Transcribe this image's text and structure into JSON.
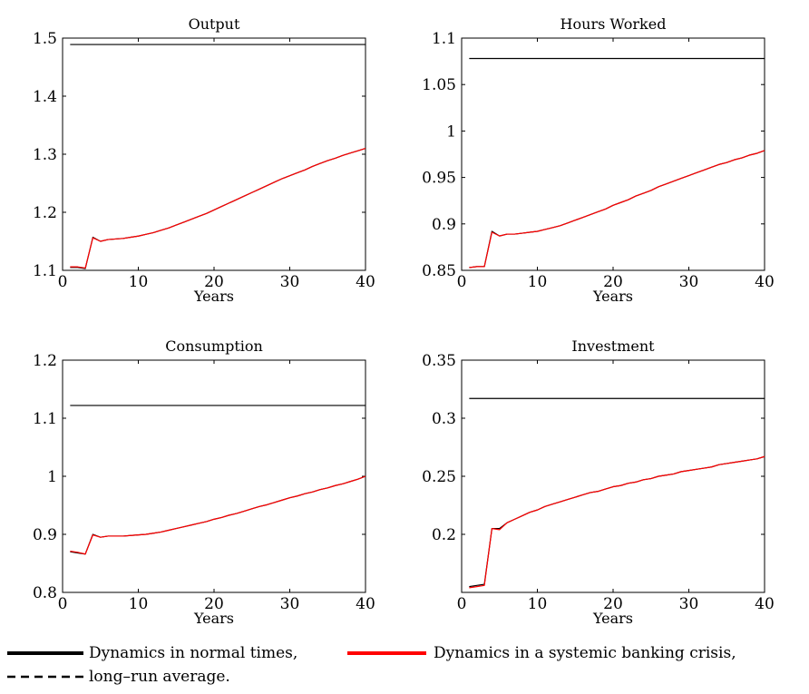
{
  "chart_data": [
    {
      "type": "line",
      "title": "Output",
      "xlabel": "Years",
      "ylabel": "",
      "xlim": [
        0,
        40
      ],
      "ylim": [
        1.1,
        1.5
      ],
      "xticks": [
        0,
        10,
        20,
        30,
        40
      ],
      "yticks": [
        1.1,
        1.2,
        1.3,
        1.4,
        1.5
      ],
      "ytick_labels": [
        "1.1",
        "1.2",
        "1.3",
        "1.4",
        "1.5"
      ],
      "grid": false,
      "x": [
        1,
        2,
        3,
        4,
        5,
        6,
        7,
        8,
        9,
        10,
        11,
        12,
        13,
        14,
        15,
        16,
        17,
        18,
        19,
        20,
        21,
        22,
        23,
        24,
        25,
        26,
        27,
        28,
        29,
        30,
        31,
        32,
        33,
        34,
        35,
        36,
        37,
        38,
        39,
        40
      ],
      "series": [
        {
          "name": "Dynamics in normal times,",
          "color": "#000000",
          "style": "solid",
          "values": [
            1.105,
            1.105,
            1.103,
            1.157,
            1.15,
            1.153,
            1.154,
            1.155,
            1.157,
            1.159,
            1.162,
            1.165,
            1.169,
            1.173,
            1.178,
            1.183,
            1.188,
            1.193,
            1.198,
            1.204,
            1.21,
            1.216,
            1.222,
            1.228,
            1.234,
            1.24,
            1.246,
            1.252,
            1.258,
            1.263,
            1.268,
            1.273,
            1.279,
            1.284,
            1.289,
            1.293,
            1.298,
            1.302,
            1.306,
            1.31
          ]
        },
        {
          "name": "Dynamics in a systemic banking crisis,",
          "color": "#ff0000",
          "style": "solid",
          "values": [
            1.106,
            1.106,
            1.104,
            1.156,
            1.15,
            1.153,
            1.154,
            1.155,
            1.157,
            1.159,
            1.162,
            1.165,
            1.169,
            1.173,
            1.178,
            1.183,
            1.188,
            1.193,
            1.198,
            1.204,
            1.21,
            1.216,
            1.222,
            1.228,
            1.234,
            1.24,
            1.246,
            1.252,
            1.258,
            1.263,
            1.268,
            1.273,
            1.279,
            1.284,
            1.289,
            1.293,
            1.298,
            1.302,
            1.306,
            1.31
          ]
        },
        {
          "name": "long–run average.",
          "color": "#000000",
          "style": "solid",
          "values": [
            1.489,
            1.489,
            1.489,
            1.489,
            1.489,
            1.489,
            1.489,
            1.489,
            1.489,
            1.489,
            1.489,
            1.489,
            1.489,
            1.489,
            1.489,
            1.489,
            1.489,
            1.489,
            1.489,
            1.489,
            1.489,
            1.489,
            1.489,
            1.489,
            1.489,
            1.489,
            1.489,
            1.489,
            1.489,
            1.489,
            1.489,
            1.489,
            1.489,
            1.489,
            1.489,
            1.489,
            1.489,
            1.489,
            1.489,
            1.489
          ]
        }
      ]
    },
    {
      "type": "line",
      "title": "Hours Worked",
      "xlabel": "Years",
      "ylabel": "",
      "xlim": [
        0,
        40
      ],
      "ylim": [
        0.85,
        1.1
      ],
      "xticks": [
        0,
        10,
        20,
        30,
        40
      ],
      "yticks": [
        0.85,
        0.9,
        0.95,
        1.0,
        1.05,
        1.1
      ],
      "ytick_labels": [
        "0.85",
        "0.9",
        "0.95",
        "1",
        "1.05",
        "1.1"
      ],
      "grid": false,
      "x": [
        1,
        2,
        3,
        4,
        5,
        6,
        7,
        8,
        9,
        10,
        11,
        12,
        13,
        14,
        15,
        16,
        17,
        18,
        19,
        20,
        21,
        22,
        23,
        24,
        25,
        26,
        27,
        28,
        29,
        30,
        31,
        32,
        33,
        34,
        35,
        36,
        37,
        38,
        39,
        40
      ],
      "series": [
        {
          "name": "Dynamics in normal times,",
          "color": "#000000",
          "style": "solid",
          "values": [
            0.853,
            0.854,
            0.854,
            0.892,
            0.887,
            0.889,
            0.889,
            0.89,
            0.891,
            0.892,
            0.894,
            0.896,
            0.898,
            0.901,
            0.904,
            0.907,
            0.91,
            0.913,
            0.916,
            0.92,
            0.923,
            0.926,
            0.93,
            0.933,
            0.936,
            0.94,
            0.943,
            0.946,
            0.949,
            0.952,
            0.955,
            0.958,
            0.961,
            0.964,
            0.966,
            0.969,
            0.971,
            0.974,
            0.976,
            0.979
          ]
        },
        {
          "name": "Dynamics in a systemic banking crisis,",
          "color": "#ff0000",
          "style": "solid",
          "values": [
            0.853,
            0.854,
            0.854,
            0.891,
            0.887,
            0.889,
            0.889,
            0.89,
            0.891,
            0.892,
            0.894,
            0.896,
            0.898,
            0.901,
            0.904,
            0.907,
            0.91,
            0.913,
            0.916,
            0.92,
            0.923,
            0.926,
            0.93,
            0.933,
            0.936,
            0.94,
            0.943,
            0.946,
            0.949,
            0.952,
            0.955,
            0.958,
            0.961,
            0.964,
            0.966,
            0.969,
            0.971,
            0.974,
            0.976,
            0.979
          ]
        },
        {
          "name": "long–run average.",
          "color": "#000000",
          "style": "solid",
          "values": [
            1.078,
            1.078,
            1.078,
            1.078,
            1.078,
            1.078,
            1.078,
            1.078,
            1.078,
            1.078,
            1.078,
            1.078,
            1.078,
            1.078,
            1.078,
            1.078,
            1.078,
            1.078,
            1.078,
            1.078,
            1.078,
            1.078,
            1.078,
            1.078,
            1.078,
            1.078,
            1.078,
            1.078,
            1.078,
            1.078,
            1.078,
            1.078,
            1.078,
            1.078,
            1.078,
            1.078,
            1.078,
            1.078,
            1.078,
            1.078
          ]
        }
      ]
    },
    {
      "type": "line",
      "title": "Consumption",
      "xlabel": "Years",
      "ylabel": "",
      "xlim": [
        0,
        40
      ],
      "ylim": [
        0.8,
        1.2
      ],
      "xticks": [
        0,
        10,
        20,
        30,
        40
      ],
      "yticks": [
        0.8,
        0.9,
        1.0,
        1.1,
        1.2
      ],
      "ytick_labels": [
        "0.8",
        "0.9",
        "1",
        "1.1",
        "1.2"
      ],
      "grid": false,
      "x": [
        1,
        2,
        3,
        4,
        5,
        6,
        7,
        8,
        9,
        10,
        11,
        12,
        13,
        14,
        15,
        16,
        17,
        18,
        19,
        20,
        21,
        22,
        23,
        24,
        25,
        26,
        27,
        28,
        29,
        30,
        31,
        32,
        33,
        34,
        35,
        36,
        37,
        38,
        39,
        40
      ],
      "series": [
        {
          "name": "Dynamics in normal times,",
          "color": "#000000",
          "style": "solid",
          "values": [
            0.87,
            0.868,
            0.866,
            0.9,
            0.895,
            0.897,
            0.897,
            0.897,
            0.898,
            0.899,
            0.9,
            0.902,
            0.904,
            0.907,
            0.91,
            0.913,
            0.916,
            0.919,
            0.922,
            0.926,
            0.929,
            0.933,
            0.936,
            0.94,
            0.944,
            0.948,
            0.951,
            0.955,
            0.959,
            0.963,
            0.966,
            0.97,
            0.973,
            0.977,
            0.98,
            0.984,
            0.987,
            0.991,
            0.995,
            1.0
          ]
        },
        {
          "name": "Dynamics in a systemic banking crisis,",
          "color": "#ff0000",
          "style": "solid",
          "values": [
            0.871,
            0.869,
            0.866,
            0.899,
            0.895,
            0.897,
            0.897,
            0.897,
            0.898,
            0.899,
            0.9,
            0.902,
            0.904,
            0.907,
            0.91,
            0.913,
            0.916,
            0.919,
            0.922,
            0.926,
            0.929,
            0.933,
            0.936,
            0.94,
            0.944,
            0.948,
            0.951,
            0.955,
            0.959,
            0.963,
            0.966,
            0.97,
            0.973,
            0.977,
            0.98,
            0.984,
            0.987,
            0.991,
            0.995,
            1.0
          ]
        },
        {
          "name": "long–run average.",
          "color": "#000000",
          "style": "solid",
          "values": [
            1.122,
            1.122,
            1.122,
            1.122,
            1.122,
            1.122,
            1.122,
            1.122,
            1.122,
            1.122,
            1.122,
            1.122,
            1.122,
            1.122,
            1.122,
            1.122,
            1.122,
            1.122,
            1.122,
            1.122,
            1.122,
            1.122,
            1.122,
            1.122,
            1.122,
            1.122,
            1.122,
            1.122,
            1.122,
            1.122,
            1.122,
            1.122,
            1.122,
            1.122,
            1.122,
            1.122,
            1.122,
            1.122,
            1.122,
            1.122
          ]
        }
      ]
    },
    {
      "type": "line",
      "title": "Investment",
      "xlabel": "Years",
      "ylabel": "",
      "xlim": [
        0,
        40
      ],
      "ylim": [
        0.15,
        0.35
      ],
      "xticks": [
        0,
        10,
        20,
        30,
        40
      ],
      "yticks": [
        0.2,
        0.25,
        0.3,
        0.35
      ],
      "ytick_labels": [
        "0.2",
        "0.25",
        "0.3",
        "0.35"
      ],
      "grid": false,
      "x": [
        1,
        2,
        3,
        4,
        5,
        6,
        7,
        8,
        9,
        10,
        11,
        12,
        13,
        14,
        15,
        16,
        17,
        18,
        19,
        20,
        21,
        22,
        23,
        24,
        25,
        26,
        27,
        28,
        29,
        30,
        31,
        32,
        33,
        34,
        35,
        36,
        37,
        38,
        39,
        40
      ],
      "series": [
        {
          "name": "Dynamics in normal times,",
          "color": "#000000",
          "style": "solid",
          "values": [
            0.155,
            0.156,
            0.157,
            0.205,
            0.205,
            0.21,
            0.213,
            0.216,
            0.219,
            0.221,
            0.224,
            0.226,
            0.228,
            0.23,
            0.232,
            0.234,
            0.236,
            0.237,
            0.239,
            0.241,
            0.242,
            0.244,
            0.245,
            0.247,
            0.248,
            0.25,
            0.251,
            0.252,
            0.254,
            0.255,
            0.256,
            0.257,
            0.258,
            0.26,
            0.261,
            0.262,
            0.263,
            0.264,
            0.265,
            0.267
          ]
        },
        {
          "name": "Dynamics in a systemic banking crisis,",
          "color": "#ff0000",
          "style": "solid",
          "values": [
            0.154,
            0.155,
            0.156,
            0.205,
            0.204,
            0.21,
            0.213,
            0.216,
            0.219,
            0.221,
            0.224,
            0.226,
            0.228,
            0.23,
            0.232,
            0.234,
            0.236,
            0.237,
            0.239,
            0.241,
            0.242,
            0.244,
            0.245,
            0.247,
            0.248,
            0.25,
            0.251,
            0.252,
            0.254,
            0.255,
            0.256,
            0.257,
            0.258,
            0.26,
            0.261,
            0.262,
            0.263,
            0.264,
            0.265,
            0.267
          ]
        },
        {
          "name": "long–run average.",
          "color": "#000000",
          "style": "solid",
          "values": [
            0.317,
            0.317,
            0.317,
            0.317,
            0.317,
            0.317,
            0.317,
            0.317,
            0.317,
            0.317,
            0.317,
            0.317,
            0.317,
            0.317,
            0.317,
            0.317,
            0.317,
            0.317,
            0.317,
            0.317,
            0.317,
            0.317,
            0.317,
            0.317,
            0.317,
            0.317,
            0.317,
            0.317,
            0.317,
            0.317,
            0.317,
            0.317,
            0.317,
            0.317,
            0.317,
            0.317,
            0.317,
            0.317,
            0.317,
            0.317
          ]
        }
      ]
    }
  ],
  "legend": {
    "placement": "bottom",
    "items": [
      {
        "label": "Dynamics in normal times,",
        "color": "#000000",
        "style": "solid"
      },
      {
        "label": "Dynamics in a systemic banking crisis,",
        "color": "#ff0000",
        "style": "solid"
      },
      {
        "label": "long–run average.",
        "color": "#000000",
        "style": "dashed"
      }
    ]
  }
}
